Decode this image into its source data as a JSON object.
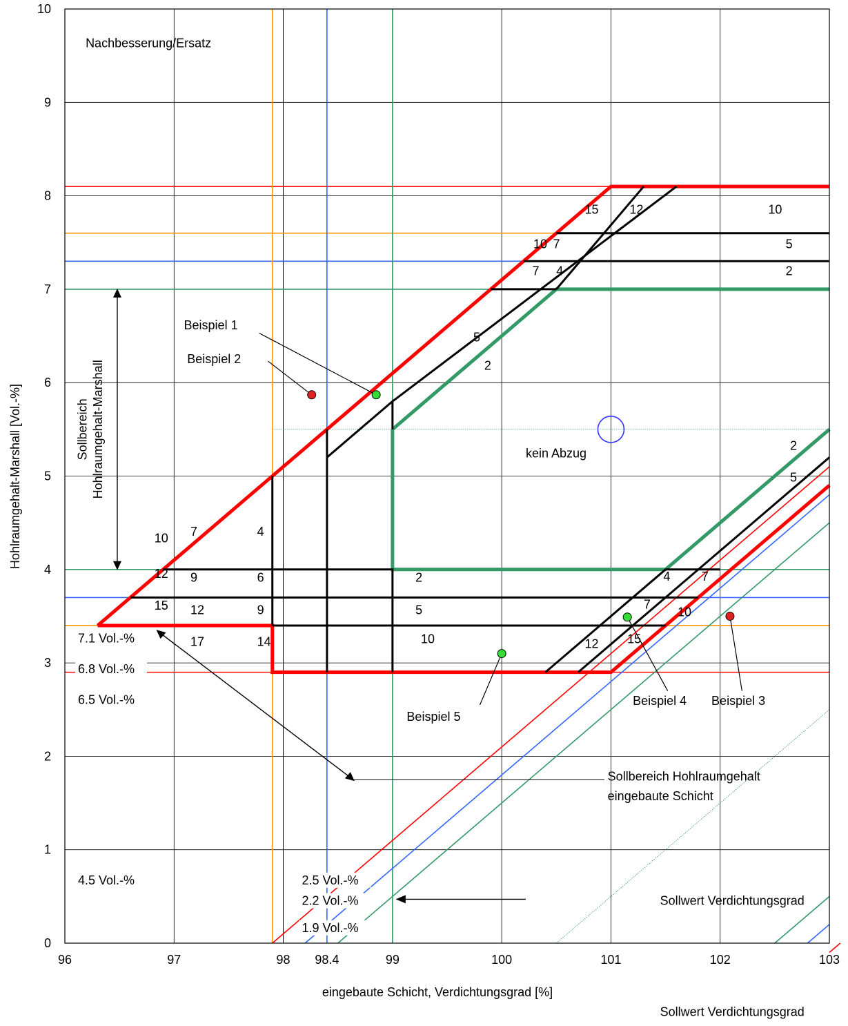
{
  "chart_data": {
    "type": "line",
    "xlabel": "eingebaute Schicht, Verdichtungsgrad [%]",
    "ylabel": "Hohlraumgehalt-Marshall [Vol.-%]",
    "xlim": [
      96,
      103
    ],
    "ylim": [
      0,
      10
    ],
    "x_ticks": [
      "96",
      "97",
      "98",
      "99",
      "100",
      "101",
      "102",
      "103"
    ],
    "x_extra_tick": "98.4",
    "y_ticks": [
      "0",
      "1",
      "2",
      "3",
      "4",
      "5",
      "6",
      "7",
      "8",
      "9",
      "10"
    ],
    "grid": true,
    "colors": {
      "red": "#ff0000",
      "orange": "#ff9900",
      "blue": "#3366ff",
      "green": "#339966",
      "black": "#000000"
    },
    "vertical_lines": [
      {
        "x": 97.9,
        "color": "orange"
      },
      {
        "x": 98.4,
        "color": "blue"
      },
      {
        "x": 99.0,
        "color": "green"
      }
    ],
    "horizontal_lines": [
      {
        "y": 8.1,
        "color": "red"
      },
      {
        "y": 7.6,
        "color": "orange"
      },
      {
        "y": 7.3,
        "color": "blue"
      },
      {
        "y": 7.0,
        "color": "green"
      },
      {
        "y": 4.0,
        "color": "green"
      },
      {
        "y": 3.7,
        "color": "blue"
      },
      {
        "y": 3.4,
        "color": "orange"
      },
      {
        "y": 2.9,
        "color": "red"
      }
    ],
    "diagonal_lines": [
      {
        "color": "red",
        "offset": 7.1,
        "label": "7.1 Vol.-%"
      },
      {
        "color": "blue",
        "offset": 6.8,
        "label": "6.8 Vol.-%"
      },
      {
        "color": "green",
        "offset": 6.5,
        "label": "6.5 Vol.-%"
      },
      {
        "color": "green",
        "offset": 4.5,
        "label": "4.5 Vol.-%",
        "thin": true
      },
      {
        "color": "green",
        "offset": 2.5,
        "label": "2.5 Vol.-%"
      },
      {
        "color": "blue",
        "offset": 2.2,
        "label": "2.2 Vol.-%"
      },
      {
        "color": "red",
        "offset": 1.9,
        "label": "1.9 Vol.-%"
      }
    ],
    "reference_line": {
      "y": 5.5,
      "color": "green"
    },
    "target_circle": {
      "x": 101,
      "y": 5.5
    },
    "boundaries": [
      {
        "color": "red",
        "points": [
          [
            96.3,
            3.4
          ],
          [
            97.9,
            3.4
          ],
          [
            97.9,
            2.9
          ],
          [
            101,
            2.9
          ],
          [
            103,
            4.9
          ]
        ]
      },
      {
        "color": "red",
        "points": [
          [
            96.3,
            3.4
          ],
          [
            101,
            8.1
          ],
          [
            103,
            8.1
          ]
        ]
      },
      {
        "color": "green",
        "points": [
          [
            99,
            5.5
          ],
          [
            99,
            4.0
          ],
          [
            101.5,
            4.0
          ],
          [
            103,
            5.5
          ]
        ]
      },
      {
        "color": "green",
        "points": [
          [
            99,
            5.5
          ],
          [
            100.5,
            7.0
          ],
          [
            103,
            7.0
          ]
        ]
      }
    ],
    "deduction_lines": [
      [
        [
          96.9,
          4.0
        ],
        [
          99,
          4.0
        ],
        [
          99,
          2.9
        ]
      ],
      [
        [
          96.6,
          3.7
        ],
        [
          101.8,
          3.7
        ]
      ],
      [
        [
          97.9,
          3.4
        ],
        [
          101.5,
          3.4
        ]
      ],
      [
        [
          97.9,
          5.0
        ],
        [
          97.9,
          3.4
        ]
      ],
      [
        [
          98.4,
          5.5
        ],
        [
          98.4,
          2.9
        ]
      ],
      [
        [
          98.4,
          5.2
        ],
        [
          99,
          5.8
        ],
        [
          99,
          5.5
        ]
      ],
      [
        [
          100.4,
          2.9
        ],
        [
          101.5,
          4.0
        ],
        [
          102,
          4.0
        ]
      ],
      [
        [
          100.7,
          2.9
        ],
        [
          103,
          5.2
        ]
      ],
      [
        [
          99,
          5.8
        ],
        [
          101.6,
          8.1
        ]
      ],
      [
        [
          99.9,
          7.0
        ],
        [
          100.5,
          7.0
        ]
      ],
      [
        [
          100.5,
          7.0
        ],
        [
          101.3,
          8.1
        ]
      ],
      [
        [
          100.2,
          7.3
        ],
        [
          103,
          7.3
        ]
      ],
      [
        [
          100.5,
          7.6
        ],
        [
          103,
          7.6
        ]
      ]
    ],
    "deduction_labels": [
      {
        "x": 96.82,
        "y": 4.29,
        "text": "10"
      },
      {
        "x": 97.15,
        "y": 4.36,
        "text": "7"
      },
      {
        "x": 97.76,
        "y": 4.36,
        "text": "4"
      },
      {
        "x": 96.82,
        "y": 3.91,
        "text": "12"
      },
      {
        "x": 97.15,
        "y": 3.87,
        "text": "9"
      },
      {
        "x": 97.76,
        "y": 3.87,
        "text": "6"
      },
      {
        "x": 99.21,
        "y": 3.87,
        "text": "2"
      },
      {
        "x": 96.82,
        "y": 3.57,
        "text": "15"
      },
      {
        "x": 97.15,
        "y": 3.52,
        "text": "12"
      },
      {
        "x": 97.76,
        "y": 3.52,
        "text": "9"
      },
      {
        "x": 99.21,
        "y": 3.52,
        "text": "5"
      },
      {
        "x": 97.15,
        "y": 3.18,
        "text": "17"
      },
      {
        "x": 97.76,
        "y": 3.18,
        "text": "14"
      },
      {
        "x": 99.26,
        "y": 3.21,
        "text": "10"
      },
      {
        "x": 100.76,
        "y": 3.16,
        "text": "12"
      },
      {
        "x": 101.15,
        "y": 3.21,
        "text": "15"
      },
      {
        "x": 101.3,
        "y": 3.58,
        "text": "7"
      },
      {
        "x": 101.61,
        "y": 3.5,
        "text": "10"
      },
      {
        "x": 101.48,
        "y": 3.88,
        "text": "4"
      },
      {
        "x": 101.83,
        "y": 3.88,
        "text": "7"
      },
      {
        "x": 102.64,
        "y": 5.28,
        "text": "2"
      },
      {
        "x": 102.64,
        "y": 4.94,
        "text": "5"
      },
      {
        "x": 100.76,
        "y": 7.81,
        "text": "15"
      },
      {
        "x": 101.17,
        "y": 7.81,
        "text": "12"
      },
      {
        "x": 102.44,
        "y": 7.81,
        "text": "10"
      },
      {
        "x": 100.29,
        "y": 7.44,
        "text": "10"
      },
      {
        "x": 100.47,
        "y": 7.44,
        "text": "7"
      },
      {
        "x": 102.6,
        "y": 7.44,
        "text": "5"
      },
      {
        "x": 100.28,
        "y": 7.15,
        "text": "7"
      },
      {
        "x": 100.5,
        "y": 7.15,
        "text": "4"
      },
      {
        "x": 102.6,
        "y": 7.15,
        "text": "2"
      },
      {
        "x": 99.74,
        "y": 6.44,
        "text": "5"
      },
      {
        "x": 99.84,
        "y": 6.14,
        "text": "2"
      }
    ],
    "examples": [
      {
        "name": "Beispiel 1",
        "x": 98.85,
        "y": 5.87,
        "color": "#33dd33"
      },
      {
        "name": "Beispiel 2",
        "x": 98.26,
        "y": 5.87,
        "color": "#dd2222"
      },
      {
        "name": "Beispiel 3",
        "x": 102.09,
        "y": 3.5,
        "color": "#dd2222"
      },
      {
        "name": "Beispiel 4",
        "x": 101.15,
        "y": 3.49,
        "color": "#33dd33"
      },
      {
        "name": "Beispiel 5",
        "x": 100.0,
        "y": 3.1,
        "color": "#33dd33"
      }
    ],
    "annotations": [
      {
        "text": "Nachbesserung/Ersatz",
        "x": 96.19,
        "y": 9.59
      },
      {
        "text": "kein Abzug",
        "x": 100.22,
        "y": 5.2
      },
      {
        "text": "Sollbereich Hohlraumgehalt",
        "x": 100.97,
        "y": 1.74
      },
      {
        "text": "eingebaute Schicht",
        "x": 100.97,
        "y": 1.53
      },
      {
        "text": "Sollwert Verdichtungsgrad",
        "x": 101.45,
        "y": 0.41
      },
      {
        "text": "Sollwert Verdichtungsgrad",
        "x": 101.45,
        "y": -0.78
      }
    ],
    "vertical_annotation": [
      "Sollbereich",
      "Hohlraumgehalt-Marshall"
    ]
  }
}
